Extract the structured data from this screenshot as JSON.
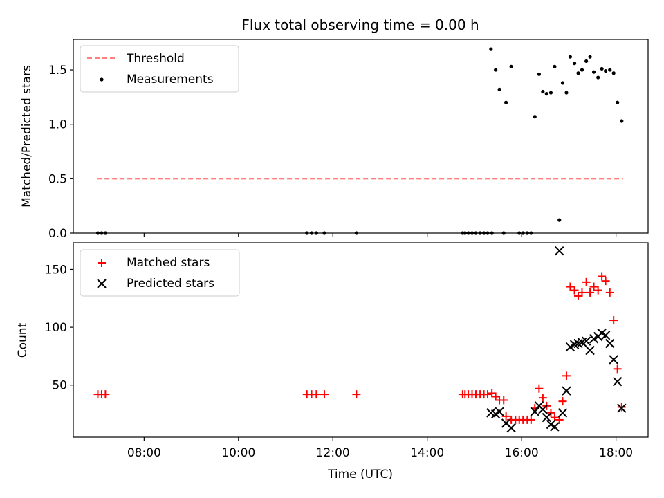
{
  "chart_data": [
    {
      "type": "scatter",
      "title": "Flux total observing time = 0.00 h",
      "ylabel": "Matched/Predicted stars",
      "xlabel": "",
      "ylim": [
        0,
        1.78
      ],
      "xlim": [
        6.5,
        18.68
      ],
      "yticks": [
        {
          "value": 0.0,
          "label": "0.0"
        },
        {
          "value": 0.5,
          "label": "0.5"
        },
        {
          "value": 1.0,
          "label": "1.0"
        },
        {
          "value": 1.5,
          "label": "1.5"
        }
      ],
      "legend": {
        "position": "upper-left",
        "entries": [
          "Threshold",
          "Measurements"
        ]
      },
      "threshold": {
        "name": "Threshold",
        "value": 0.5,
        "x_start": 7.0,
        "x_end": 18.15,
        "color": "#ff7f7f",
        "style": "dashed"
      },
      "series": [
        {
          "name": "Measurements",
          "color": "#000000",
          "marker": "dot",
          "points": [
            [
              7.02,
              0.0
            ],
            [
              7.1,
              0.0
            ],
            [
              7.18,
              0.0
            ],
            [
              11.45,
              0.0
            ],
            [
              11.55,
              0.0
            ],
            [
              11.65,
              0.0
            ],
            [
              11.82,
              0.0
            ],
            [
              12.5,
              0.0
            ],
            [
              14.75,
              0.0
            ],
            [
              14.8,
              0.0
            ],
            [
              14.87,
              0.0
            ],
            [
              14.95,
              0.0
            ],
            [
              15.03,
              0.0
            ],
            [
              15.12,
              0.0
            ],
            [
              15.2,
              0.0
            ],
            [
              15.28,
              0.0
            ],
            [
              15.37,
              0.0
            ],
            [
              15.35,
              1.69
            ],
            [
              15.45,
              1.5
            ],
            [
              15.53,
              1.32
            ],
            [
              15.62,
              0.0
            ],
            [
              15.67,
              1.2
            ],
            [
              15.78,
              1.53
            ],
            [
              15.95,
              0.0
            ],
            [
              16.03,
              0.0
            ],
            [
              16.12,
              0.0
            ],
            [
              16.2,
              0.0
            ],
            [
              16.28,
              1.07
            ],
            [
              16.37,
              1.46
            ],
            [
              16.45,
              1.3
            ],
            [
              16.53,
              1.28
            ],
            [
              16.62,
              1.29
            ],
            [
              16.7,
              1.53
            ],
            [
              16.8,
              0.12
            ],
            [
              16.87,
              1.38
            ],
            [
              16.95,
              1.29
            ],
            [
              17.03,
              1.62
            ],
            [
              17.12,
              1.56
            ],
            [
              17.2,
              1.47
            ],
            [
              17.28,
              1.5
            ],
            [
              17.37,
              1.58
            ],
            [
              17.45,
              1.62
            ],
            [
              17.53,
              1.48
            ],
            [
              17.62,
              1.43
            ],
            [
              17.7,
              1.51
            ],
            [
              17.78,
              1.49
            ],
            [
              17.87,
              1.5
            ],
            [
              17.95,
              1.47
            ],
            [
              18.03,
              1.2
            ],
            [
              18.12,
              1.03
            ]
          ]
        }
      ]
    },
    {
      "type": "scatter",
      "title": "",
      "ylabel": "Count",
      "xlabel": "Time (UTC)",
      "ylim": [
        5,
        173
      ],
      "xlim": [
        6.5,
        18.68
      ],
      "yticks": [
        {
          "value": 50,
          "label": "50"
        },
        {
          "value": 100,
          "label": "100"
        },
        {
          "value": 150,
          "label": "150"
        }
      ],
      "xticks": [
        {
          "value": 8,
          "label": "08:00"
        },
        {
          "value": 10,
          "label": "10:00"
        },
        {
          "value": 12,
          "label": "12:00"
        },
        {
          "value": 14,
          "label": "14:00"
        },
        {
          "value": 16,
          "label": "16:00"
        },
        {
          "value": 18,
          "label": "18:00"
        }
      ],
      "legend": {
        "position": "upper-left",
        "entries": [
          "Matched stars",
          "Predicted stars"
        ]
      },
      "series": [
        {
          "name": "Matched stars",
          "color": "#ff0000",
          "marker": "plus",
          "points": [
            [
              7.02,
              42
            ],
            [
              7.1,
              42
            ],
            [
              7.18,
              42
            ],
            [
              11.45,
              42
            ],
            [
              11.55,
              42
            ],
            [
              11.65,
              42
            ],
            [
              11.82,
              42
            ],
            [
              12.5,
              42
            ],
            [
              14.75,
              42
            ],
            [
              14.8,
              42
            ],
            [
              14.87,
              42
            ],
            [
              14.95,
              42
            ],
            [
              15.03,
              42
            ],
            [
              15.12,
              42
            ],
            [
              15.2,
              42
            ],
            [
              15.28,
              42
            ],
            [
              15.37,
              43
            ],
            [
              15.45,
              40
            ],
            [
              15.53,
              37
            ],
            [
              15.62,
              37
            ],
            [
              15.67,
              23
            ],
            [
              15.78,
              20
            ],
            [
              15.87,
              20
            ],
            [
              15.95,
              20
            ],
            [
              16.03,
              20
            ],
            [
              16.12,
              20
            ],
            [
              16.2,
              20
            ],
            [
              16.28,
              30
            ],
            [
              16.37,
              47
            ],
            [
              16.45,
              39
            ],
            [
              16.53,
              32
            ],
            [
              16.62,
              26
            ],
            [
              16.7,
              22
            ],
            [
              16.8,
              20
            ],
            [
              16.87,
              36
            ],
            [
              16.95,
              58
            ],
            [
              17.03,
              135
            ],
            [
              17.12,
              132
            ],
            [
              17.2,
              127
            ],
            [
              17.28,
              130
            ],
            [
              17.37,
              139
            ],
            [
              17.45,
              130
            ],
            [
              17.53,
              135
            ],
            [
              17.62,
              132
            ],
            [
              17.7,
              144
            ],
            [
              17.78,
              140
            ],
            [
              17.87,
              130
            ],
            [
              17.95,
              106
            ],
            [
              18.03,
              64
            ],
            [
              18.12,
              31
            ]
          ]
        },
        {
          "name": "Predicted stars",
          "color": "#000000",
          "marker": "x",
          "points": [
            [
              15.35,
              26
            ],
            [
              15.45,
              25
            ],
            [
              15.53,
              27
            ],
            [
              15.67,
              17
            ],
            [
              15.78,
              13
            ],
            [
              16.28,
              27
            ],
            [
              16.37,
              32
            ],
            [
              16.45,
              29
            ],
            [
              16.53,
              22
            ],
            [
              16.62,
              16
            ],
            [
              16.7,
              14
            ],
            [
              16.8,
              166
            ],
            [
              16.87,
              26
            ],
            [
              16.95,
              45
            ],
            [
              17.03,
              83
            ],
            [
              17.12,
              85
            ],
            [
              17.2,
              86
            ],
            [
              17.28,
              87
            ],
            [
              17.37,
              88
            ],
            [
              17.45,
              80
            ],
            [
              17.53,
              90
            ],
            [
              17.62,
              92
            ],
            [
              17.7,
              95
            ],
            [
              17.78,
              93
            ],
            [
              17.87,
              86
            ],
            [
              17.95,
              72
            ],
            [
              18.03,
              53
            ],
            [
              18.12,
              30
            ]
          ]
        }
      ]
    }
  ]
}
